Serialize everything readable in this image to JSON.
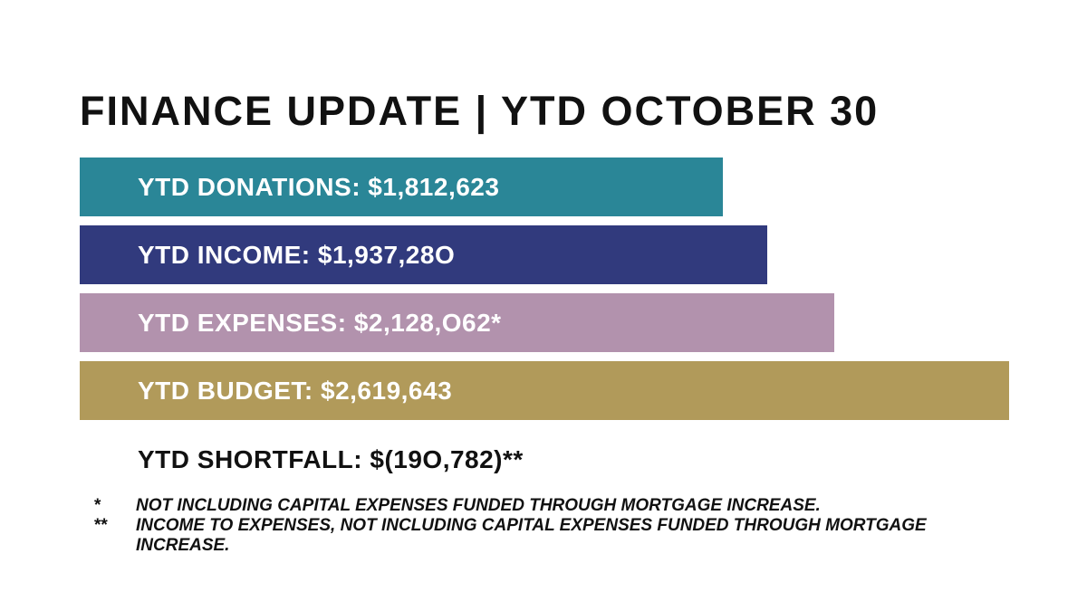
{
  "title": "FINANCE UPDATE | YTD OCTOBER 30",
  "chart_data": {
    "type": "bar",
    "orientation": "horizontal",
    "categories": [
      "YTD DONATIONS",
      "YTD INCOME",
      "YTD EXPENSES",
      "YTD BUDGET"
    ],
    "values": [
      1812623,
      1937280,
      2128062,
      2619643
    ],
    "labels": [
      "YTD DONATIONS: $1,812,623",
      "YTD INCOME: $1,937,28O",
      "YTD EXPENSES: $2,128,O62*",
      "YTD BUDGET: $2,619,643"
    ],
    "colors": [
      "#2a8697",
      "#313a7d",
      "#b292ad",
      "#b19a5a"
    ],
    "title": "FINANCE UPDATE | YTD OCTOBER 30"
  },
  "shortfall": "YTD SHORTFALL: $(19O,782)**",
  "notes": [
    {
      "mark": "*",
      "text": "NOT INCLUDING CAPITAL EXPENSES FUNDED THROUGH MORTGAGE INCREASE."
    },
    {
      "mark": "**",
      "text": "INCOME TO EXPENSES, NOT INCLUDING CAPITAL EXPENSES FUNDED THROUGH MORTGAGE INCREASE."
    }
  ]
}
